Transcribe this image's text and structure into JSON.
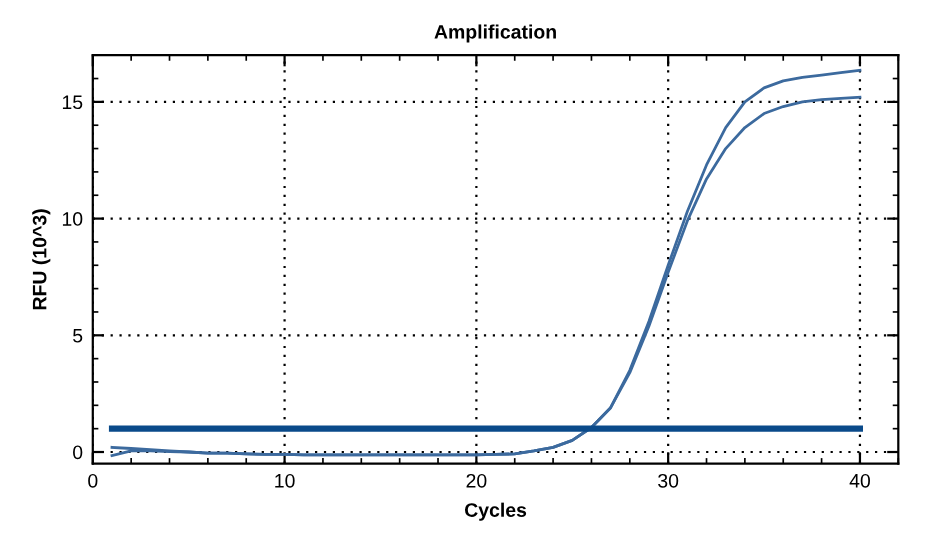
{
  "chart_data": {
    "type": "line",
    "title": "Amplification",
    "xlabel": "Cycles",
    "ylabel": "RFU (10^3)",
    "x": [
      1,
      2,
      3,
      4,
      5,
      6,
      7,
      8,
      9,
      10,
      11,
      12,
      13,
      14,
      15,
      16,
      17,
      18,
      19,
      20,
      21,
      22,
      23,
      24,
      25,
      26,
      27,
      28,
      29,
      30,
      31,
      32,
      33,
      34,
      35,
      36,
      37,
      38,
      39,
      40
    ],
    "series": [
      {
        "color": "#3c6a9e",
        "values": [
          0.2,
          0.15,
          0.1,
          0.05,
          0.0,
          -0.05,
          -0.05,
          -0.08,
          -0.1,
          -0.1,
          -0.12,
          -0.12,
          -0.12,
          -0.12,
          -0.12,
          -0.12,
          -0.12,
          -0.12,
          -0.12,
          -0.12,
          -0.1,
          -0.08,
          0.05,
          0.2,
          0.5,
          1.05,
          1.9,
          3.5,
          5.6,
          8.0,
          10.3,
          12.3,
          13.9,
          15.0,
          15.6,
          15.9,
          16.05,
          16.15,
          16.25,
          16.35
        ]
      },
      {
        "color": "#3c6a9e",
        "values": [
          -0.15,
          0.05,
          0.05,
          0.02,
          0.0,
          -0.05,
          -0.05,
          -0.08,
          -0.1,
          -0.1,
          -0.12,
          -0.12,
          -0.12,
          -0.12,
          -0.12,
          -0.12,
          -0.12,
          -0.12,
          -0.12,
          -0.12,
          -0.1,
          -0.08,
          0.05,
          0.2,
          0.5,
          1.05,
          1.9,
          3.4,
          5.4,
          7.7,
          9.9,
          11.7,
          13.0,
          13.9,
          14.5,
          14.8,
          15.0,
          15.1,
          15.15,
          15.2
        ]
      },
      {
        "color": "#0a4a8a",
        "x": [
          1,
          40
        ],
        "values": [
          1,
          1
        ]
      }
    ],
    "xlim": [
      0,
      42
    ],
    "ylim": [
      -0.5,
      17
    ],
    "xticks": [
      0,
      10,
      20,
      30,
      40
    ],
    "yticks": [
      0,
      5,
      10,
      15
    ],
    "grid": true,
    "line_style": "solid",
    "marker": "none"
  }
}
